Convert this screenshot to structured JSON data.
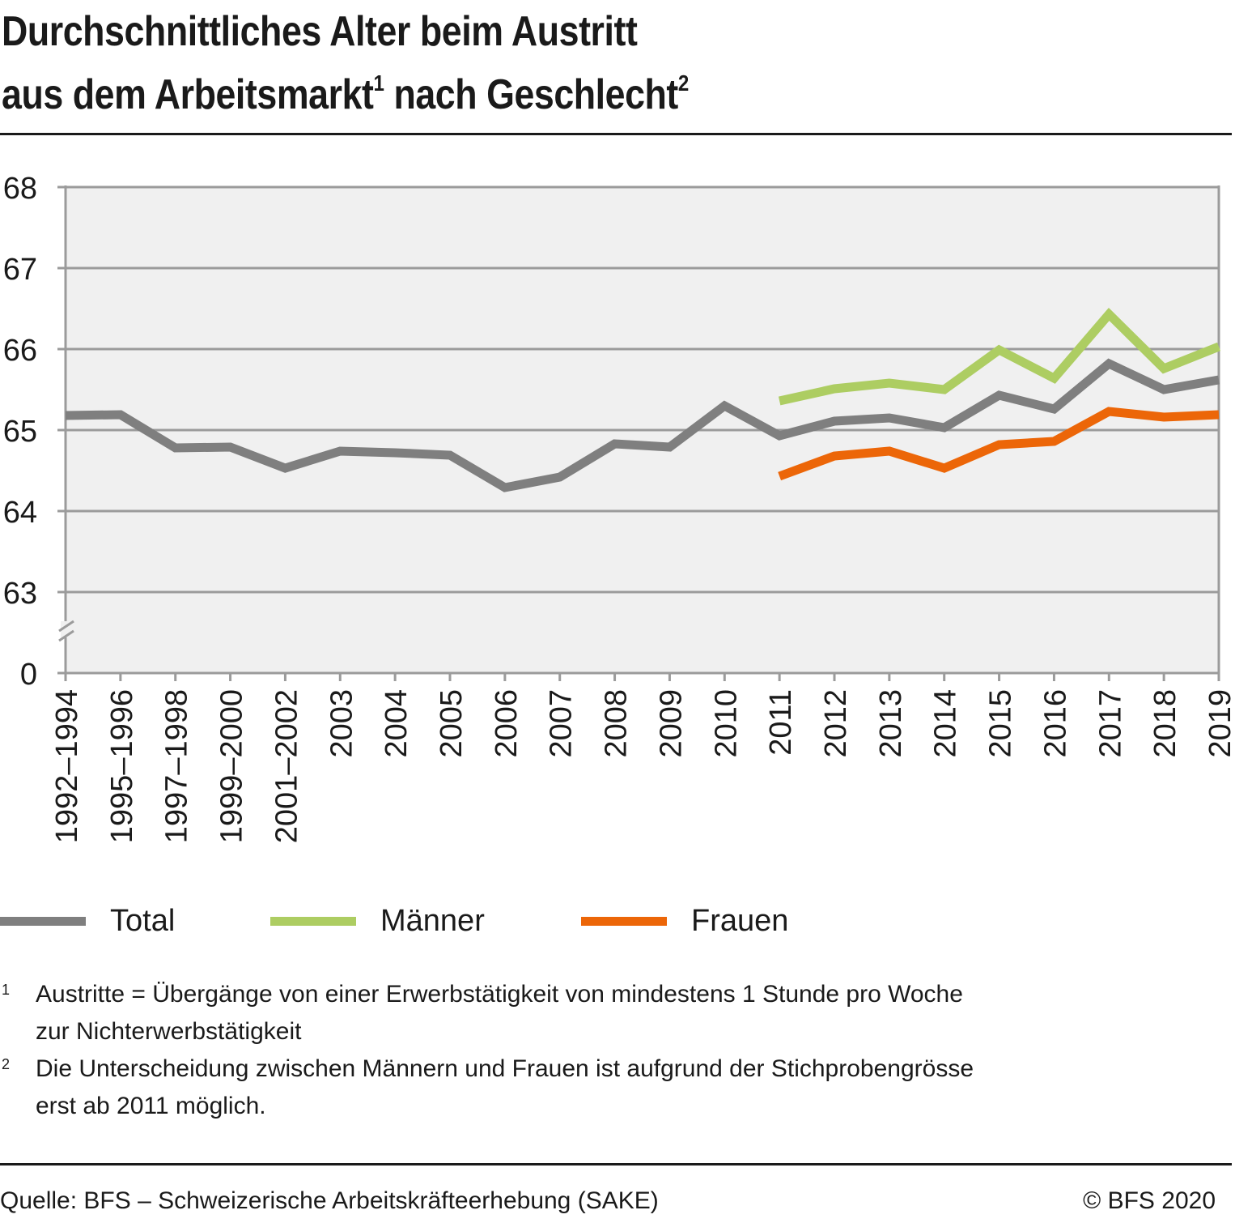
{
  "title": {
    "line1": "Durchschnittliches Alter beim Austritt",
    "line2_a": "aus dem Arbeitsmarkt",
    "line2_sup1": "1",
    "line2_b": " nach Geschlecht",
    "line2_sup2": "2"
  },
  "legend": [
    {
      "label": "Total",
      "color": "#7f7f7f"
    },
    {
      "label": "Männer",
      "color": "#adcd62"
    },
    {
      "label": "Frauen",
      "color": "#ec6608"
    }
  ],
  "footnotes": [
    {
      "num": "1",
      "text": "Austritte = Übergänge von einer Erwerbstätigkeit von mindestens 1 Stunde pro Woche",
      "text2": "zur Nichterwerbstätigkeit"
    },
    {
      "num": "2",
      "text": "Die Unterscheidung zwischen Männern und Frauen ist aufgrund der Stichprobengrösse",
      "text2": "erst ab 2011 möglich."
    }
  ],
  "source": "Quelle: BFS – Schweizerische Arbeitskräfteerhebung (SAKE)",
  "copyright": "© BFS 2020",
  "chart_data": {
    "type": "line",
    "title": "Durchschnittliches Alter beim Austritt aus dem Arbeitsmarkt nach Geschlecht",
    "xlabel": "",
    "ylabel": "",
    "categories": [
      "1992–1994",
      "1995–1996",
      "1997–1998",
      "1999–2000",
      "2001–2002",
      "2003",
      "2004",
      "2005",
      "2006",
      "2007",
      "2008",
      "2009",
      "2010",
      "2011",
      "2012",
      "2013",
      "2014",
      "2015",
      "2016",
      "2017",
      "2018",
      "2019"
    ],
    "y_ticks": [
      "0",
      "63",
      "64",
      "65",
      "66",
      "67",
      "68"
    ],
    "y_tick_values": [
      0,
      63,
      64,
      65,
      66,
      67,
      68
    ],
    "ylim": [
      63,
      68
    ],
    "axis_break": "between 0 and 63",
    "grid": true,
    "legend_position": "bottom",
    "series": [
      {
        "name": "Total",
        "color": "#7f7f7f",
        "values": [
          65.18,
          65.19,
          64.78,
          64.79,
          64.53,
          64.74,
          64.72,
          64.69,
          64.29,
          64.42,
          64.83,
          64.79,
          65.3,
          64.93,
          65.11,
          65.15,
          65.03,
          65.43,
          65.26,
          65.82,
          65.5,
          65.62
        ]
      },
      {
        "name": "Männer",
        "color": "#adcd62",
        "values": [
          null,
          null,
          null,
          null,
          null,
          null,
          null,
          null,
          null,
          null,
          null,
          null,
          null,
          65.36,
          65.51,
          65.58,
          65.5,
          65.99,
          65.64,
          66.43,
          65.76,
          66.03
        ]
      },
      {
        "name": "Frauen",
        "color": "#ec6608",
        "values": [
          null,
          null,
          null,
          null,
          null,
          null,
          null,
          null,
          null,
          null,
          null,
          null,
          null,
          64.43,
          64.68,
          64.74,
          64.53,
          64.82,
          64.86,
          65.23,
          65.16,
          65.19
        ]
      }
    ]
  }
}
